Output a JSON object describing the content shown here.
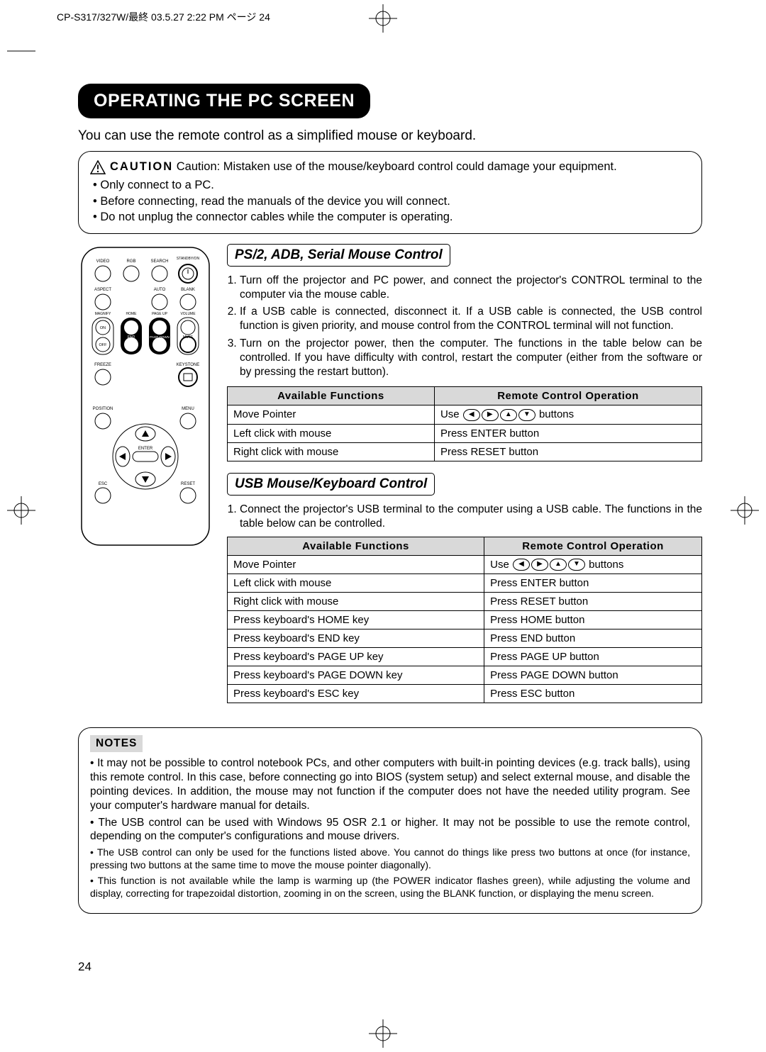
{
  "header": "CP-S317/327W/最終  03.5.27 2:22 PM  ページ 24",
  "title": "OPERATING THE PC SCREEN",
  "intro": "You can use the remote control as a simplified mouse or keyboard.",
  "caution": {
    "lead_bold": "CAUTION",
    "lead_text": "Caution: Mistaken use of the mouse/keyboard control could damage your equipment.",
    "bullets": [
      "Only connect to a PC.",
      "Before connecting, read the manuals of the device you will connect.",
      "Do not unplug the connector cables while the computer is operating."
    ]
  },
  "section1": {
    "heading": "PS/2, ADB, Serial Mouse Control",
    "items": [
      "Turn off the projector and PC power, and connect the projector's CONTROL terminal to the computer via the mouse cable.",
      "If a USB cable is connected, disconnect it. If a USB cable is connected, the USB control function is given priority, and mouse control from the CONTROL terminal will not function.",
      "Turn on the projector power, then the computer.\nThe functions in the table below can be controlled. If you have difficulty with control, restart the computer (either from the software or by pressing the restart button)."
    ],
    "table": {
      "headers": [
        "Available Functions",
        "Remote Control Operation"
      ],
      "rows": [
        [
          "Move Pointer",
          "USE_DIR_BUTTONS"
        ],
        [
          "Left click with mouse",
          "Press ENTER button"
        ],
        [
          "Right click with mouse",
          "Press RESET button"
        ]
      ]
    }
  },
  "section2": {
    "heading": "USB Mouse/Keyboard Control",
    "desc": "Connect the projector's USB terminal to the computer using a USB cable. The functions in the table below can be controlled.",
    "table": {
      "headers": [
        "Available Functions",
        "Remote Control Operation"
      ],
      "rows": [
        [
          "Move Pointer",
          "USE_DIR_BUTTONS"
        ],
        [
          "Left click with mouse",
          "Press ENTER button"
        ],
        [
          "Right click with mouse",
          "Press RESET button"
        ],
        [
          "Press keyboard's HOME key",
          "Press HOME button"
        ],
        [
          "Press keyboard's END key",
          "Press END button"
        ],
        [
          "Press keyboard's PAGE UP key",
          "Press PAGE UP button"
        ],
        [
          "Press keyboard's PAGE DOWN key",
          "Press PAGE DOWN button"
        ],
        [
          "Press keyboard's ESC key",
          "Press ESC button"
        ]
      ]
    }
  },
  "notes": {
    "label": "NOTES",
    "items": [
      {
        "text": "It may not be possible to control notebook PCs, and other computers with built-in pointing devices (e.g. track balls), using this remote control. In this case, before connecting go into BIOS (system setup) and select external mouse, and disable the pointing devices. In addition, the mouse may not function if the computer does not have the needed utility program. See your computer's hardware manual for details.",
        "small": false
      },
      {
        "text": "The USB control can be used with Windows 95 OSR 2.1 or higher. It may not be possible to use the remote control, depending on the computer's configurations and mouse drivers.",
        "small": false
      },
      {
        "text": "The USB control can only be used for the functions listed above. You cannot do things like press two buttons at once (for instance, pressing two buttons at the same time to move the mouse pointer diagonally).",
        "small": true
      },
      {
        "text": "This function is not available while the lamp is warming up (the POWER indicator flashes green), while adjusting the volume and display, correcting for trapezoidal distortion, zooming in on the screen, using the BLANK function, or displaying the menu screen.",
        "small": true
      }
    ]
  },
  "dir_buttons_label": {
    "prefix": "Use ",
    "suffix": " buttons"
  },
  "page_number": "24",
  "remote_labels": {
    "row1": [
      "VIDEO",
      "RGB",
      "SEARCH",
      "STANDBY/ON"
    ],
    "row2": [
      "ASPECT",
      "",
      "AUTO",
      "BLANK"
    ],
    "row3_top": [
      "MAGNIFY",
      "HOME",
      "PAGE UP",
      "VOLUME"
    ],
    "row3_on": "ON",
    "row3_bot": [
      "",
      "END",
      "PAGE DOWN",
      "MUTE"
    ],
    "row3_off": "OFF",
    "row4": [
      "FREEZE",
      "",
      "",
      "KEYSTONE"
    ],
    "row5": [
      "POSITION",
      "",
      "",
      "MENU"
    ],
    "enter": "ENTER",
    "esc": "ESC",
    "reset": "RESET"
  }
}
